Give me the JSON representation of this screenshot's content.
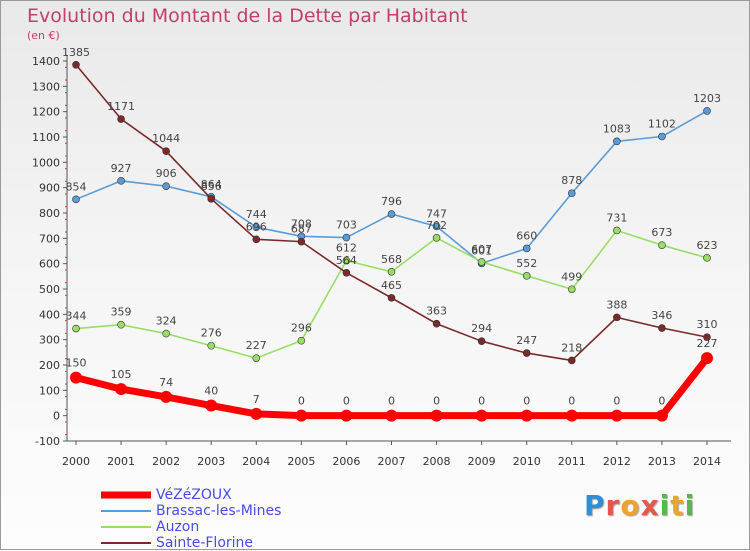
{
  "title": "Evolution du Montant de la Dette par Habitant",
  "unit": "(en €)",
  "logo": "Proxiti",
  "colors": {
    "title": "#c0406a",
    "legend_text": "#4a4ae6"
  },
  "chart_data": {
    "type": "line",
    "title": "Evolution du Montant de la Dette par Habitant",
    "ylabel": "(en €)",
    "xlabel": "",
    "ylim": [
      -100,
      1400
    ],
    "yticks": [
      -100,
      0,
      100,
      200,
      300,
      400,
      500,
      600,
      700,
      800,
      900,
      1000,
      1100,
      1200,
      1300,
      1400
    ],
    "categories": [
      "2000",
      "2001",
      "2002",
      "2003",
      "2004",
      "2005",
      "2006",
      "2007",
      "2008",
      "2009",
      "2010",
      "2011",
      "2012",
      "2013",
      "2014"
    ],
    "grid": false,
    "legend_position": "bottom-left",
    "series": [
      {
        "name": "VéZéZOUX",
        "color": "#ff0000",
        "values": [
          150,
          105,
          74,
          40,
          7,
          0,
          0,
          0,
          0,
          0,
          0,
          0,
          0,
          0,
          227
        ]
      },
      {
        "name": "Brassac-les-Mines",
        "color": "#5b9bd5",
        "values": [
          854,
          927,
          906,
          864,
          744,
          708,
          703,
          796,
          747,
          601,
          660,
          878,
          1083,
          1102,
          1203
        ]
      },
      {
        "name": "Auzon",
        "color": "#99dd66",
        "values": [
          344,
          359,
          324,
          276,
          227,
          296,
          612,
          568,
          702,
          607,
          552,
          499,
          731,
          673,
          623
        ]
      },
      {
        "name": "Sainte-Florine",
        "color": "#7a2a2a",
        "values": [
          1385,
          1171,
          1044,
          856,
          696,
          687,
          564,
          465,
          363,
          294,
          247,
          218,
          388,
          346,
          310
        ]
      }
    ]
  }
}
